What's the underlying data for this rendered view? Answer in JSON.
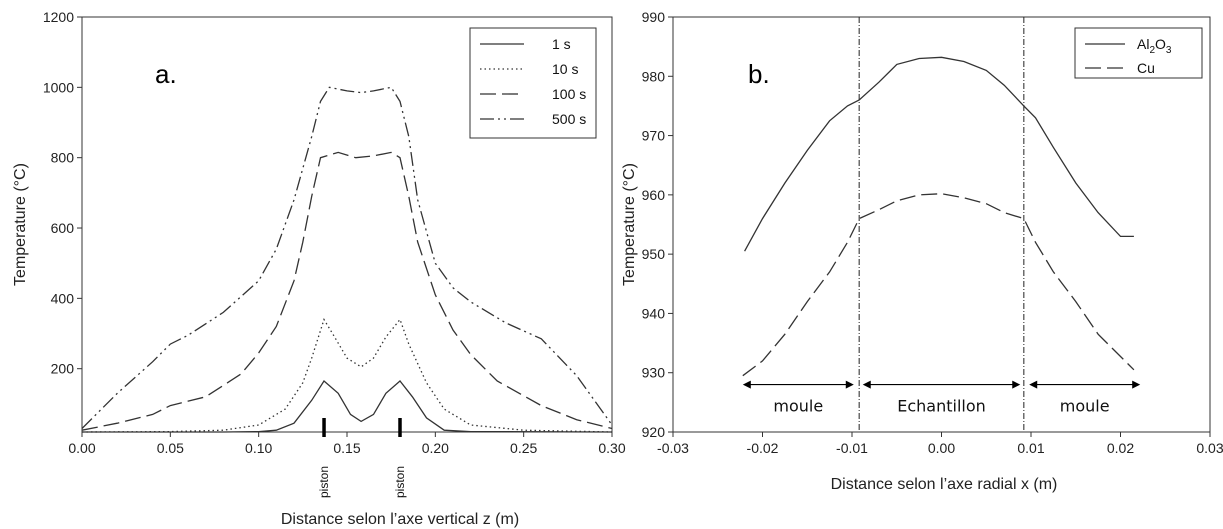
{
  "chart_data": [
    {
      "type": "line",
      "panel_label": "a.",
      "xlabel": "Distance selon l’axe vertical z (m)",
      "ylabel": "Temperature (°C)",
      "xlim": [
        0,
        0.3
      ],
      "ylim": [
        20,
        1200
      ],
      "xticks": [
        "0.00",
        "0.05",
        "0.10",
        "0.15",
        "0.20",
        "0.25",
        "0.30"
      ],
      "yticks": [
        "200",
        "400",
        "600",
        "800",
        "1000",
        "1200"
      ],
      "legend_position": "top-right",
      "annotations": [
        {
          "text": "piston",
          "x": 0.137
        },
        {
          "text": "piston",
          "x": 0.18
        }
      ],
      "series": [
        {
          "name": "1 s",
          "dash": "solid",
          "x": [
            0,
            0.08,
            0.1,
            0.11,
            0.12,
            0.13,
            0.137,
            0.145,
            0.152,
            0.158,
            0.165,
            0.172,
            0.18,
            0.187,
            0.195,
            0.205,
            0.22,
            0.3
          ],
          "y": [
            20,
            20,
            21,
            25,
            45,
            110,
            165,
            130,
            70,
            50,
            70,
            130,
            165,
            120,
            60,
            25,
            21,
            20
          ]
        },
        {
          "name": "10 s",
          "dash": "dot",
          "x": [
            0,
            0.05,
            0.08,
            0.1,
            0.115,
            0.125,
            0.13,
            0.137,
            0.143,
            0.15,
            0.158,
            0.165,
            0.172,
            0.18,
            0.185,
            0.195,
            0.205,
            0.22,
            0.25,
            0.3
          ],
          "y": [
            20,
            21,
            25,
            40,
            85,
            160,
            230,
            340,
            290,
            230,
            205,
            230,
            290,
            340,
            270,
            160,
            85,
            40,
            25,
            20
          ]
        },
        {
          "name": "100 s",
          "dash": "dash",
          "x": [
            0,
            0.02,
            0.04,
            0.05,
            0.07,
            0.09,
            0.1,
            0.11,
            0.12,
            0.125,
            0.13,
            0.135,
            0.145,
            0.155,
            0.165,
            0.175,
            0.18,
            0.185,
            0.19,
            0.2,
            0.21,
            0.22,
            0.235,
            0.26,
            0.28,
            0.3
          ],
          "y": [
            25,
            45,
            70,
            95,
            120,
            185,
            245,
            320,
            450,
            560,
            690,
            800,
            815,
            800,
            805,
            815,
            800,
            690,
            560,
            410,
            310,
            240,
            165,
            95,
            55,
            30
          ]
        },
        {
          "name": "500 s",
          "dash": "dashdotdot",
          "x": [
            0,
            0.02,
            0.04,
            0.05,
            0.06,
            0.08,
            0.1,
            0.11,
            0.12,
            0.13,
            0.135,
            0.14,
            0.15,
            0.158,
            0.165,
            0.175,
            0.18,
            0.185,
            0.19,
            0.2,
            0.21,
            0.22,
            0.24,
            0.26,
            0.28,
            0.29,
            0.3
          ],
          "y": [
            30,
            130,
            220,
            270,
            295,
            360,
            450,
            540,
            680,
            860,
            960,
            1000,
            990,
            985,
            990,
            1000,
            960,
            860,
            680,
            500,
            430,
            390,
            330,
            285,
            180,
            110,
            40
          ]
        }
      ]
    },
    {
      "type": "line",
      "panel_label": "b.",
      "xlabel": "Distance selon l’axe radial x (m)",
      "ylabel": "Temperature (°C)",
      "xlim": [
        -0.03,
        0.03
      ],
      "ylim": [
        920,
        990
      ],
      "xticks": [
        "-0.03",
        "-0.02",
        "-0.01",
        "0.00",
        "0.01",
        "0.02",
        "0.03"
      ],
      "yticks": [
        "920",
        "930",
        "940",
        "950",
        "960",
        "970",
        "980",
        "990"
      ],
      "legend_position": "top-right",
      "vlines": [
        -0.0092,
        0.0092
      ],
      "regions": [
        {
          "label": "moule",
          "from": -0.0222,
          "to": -0.0098
        },
        {
          "label": "Echantillon",
          "from": -0.0088,
          "to": 0.0088
        },
        {
          "label": "moule",
          "from": 0.0098,
          "to": 0.0222
        }
      ],
      "region_arrow_y": 928,
      "region_label_y": 923.5,
      "series": [
        {
          "name": "Al2O3",
          "dash": "solid",
          "x": [
            -0.022,
            -0.02,
            -0.0175,
            -0.015,
            -0.0125,
            -0.0105,
            -0.0092,
            -0.007,
            -0.005,
            -0.0025,
            0,
            0.0025,
            0.005,
            0.007,
            0.0092,
            0.0105,
            0.0125,
            0.015,
            0.0175,
            0.02,
            0.0215
          ],
          "y": [
            950.5,
            956,
            962,
            967.5,
            972.5,
            975,
            976,
            979,
            982,
            983,
            983.2,
            982.5,
            981,
            978.5,
            975,
            973,
            968,
            962,
            957,
            953,
            953
          ]
        },
        {
          "name": "Cu",
          "dash": "dash",
          "x": [
            -0.0222,
            -0.02,
            -0.0175,
            -0.015,
            -0.0125,
            -0.0105,
            -0.0092,
            -0.007,
            -0.005,
            -0.0025,
            0,
            0.0025,
            0.005,
            0.007,
            0.0092,
            0.0105,
            0.0125,
            0.015,
            0.0175,
            0.0215
          ],
          "y": [
            929.5,
            932,
            936.5,
            942,
            947,
            952,
            956,
            957.5,
            959,
            960,
            960.2,
            959.5,
            958.5,
            957,
            956,
            952,
            947,
            942,
            936.5,
            930.5
          ]
        }
      ]
    }
  ]
}
